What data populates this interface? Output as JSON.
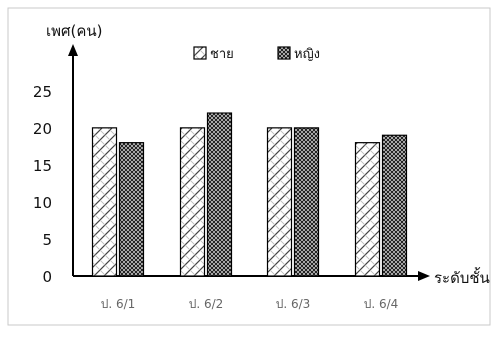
{
  "chart_data": {
    "type": "bar",
    "ylabel": "เพศ(คน)",
    "xlabel": "ระดับชั้น",
    "categories": [
      "ป. 6/1",
      "ป. 6/2",
      "ป. 6/3",
      "ป. 6/4"
    ],
    "series": [
      {
        "name": "ชาย",
        "values": [
          20,
          20,
          20,
          18
        ],
        "pattern": "diagonal-hatch"
      },
      {
        "name": "หญิง",
        "values": [
          18,
          22,
          20,
          19
        ],
        "pattern": "crosshatch-dark"
      }
    ],
    "ylim": [
      0,
      27
    ],
    "yticks": [
      0,
      5,
      10,
      15,
      20,
      25
    ],
    "grid": false,
    "legend_position": "top-center",
    "colors": {
      "axis": "#000000",
      "bar_stroke": "#000000",
      "frame": "#c9c9c9",
      "text": "#111111"
    }
  }
}
